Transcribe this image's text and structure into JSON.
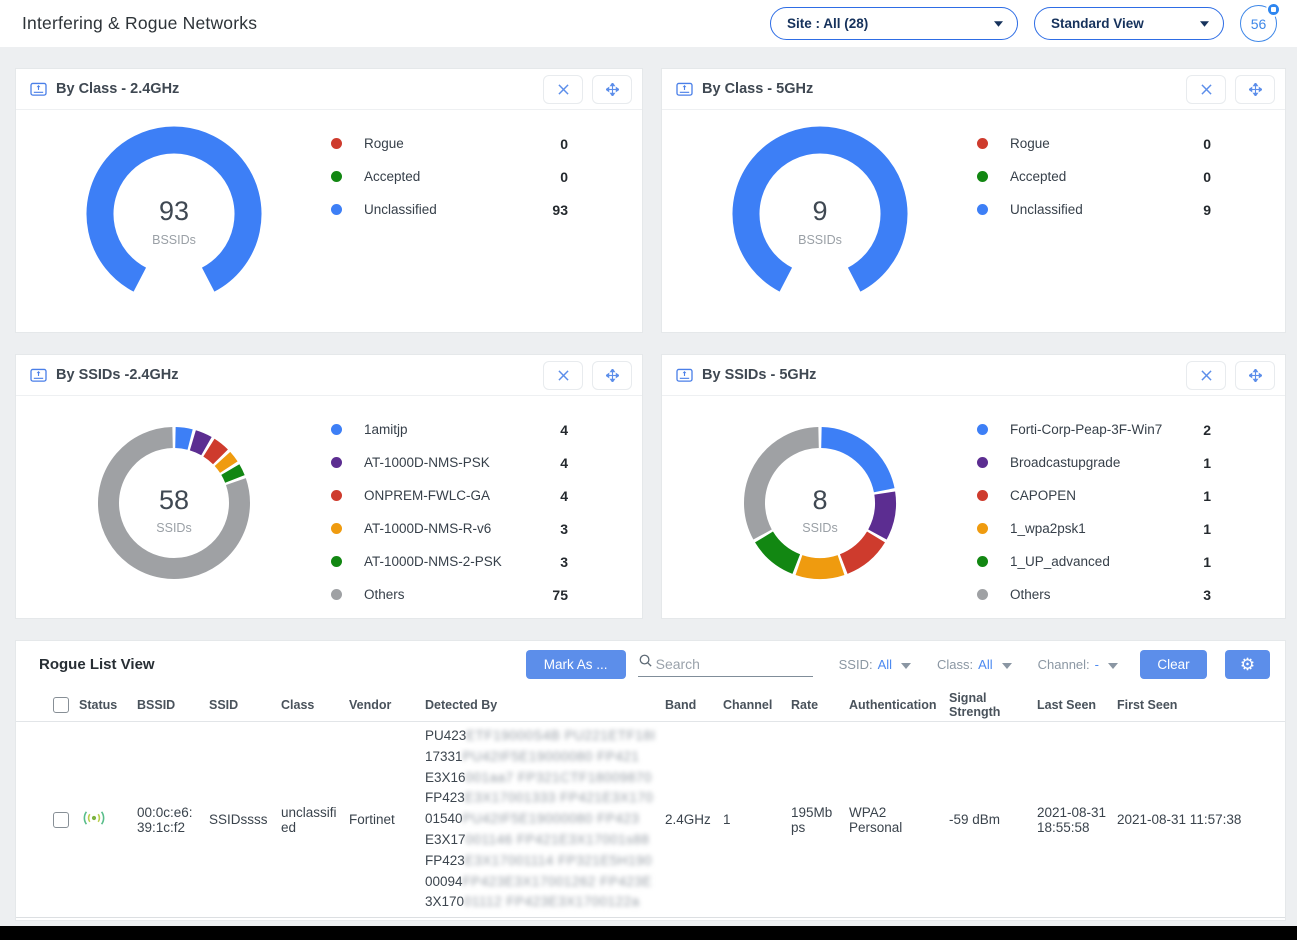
{
  "header": {
    "title": "Interfering & Rogue Networks",
    "site_dropdown": "Site : All (28)",
    "view_dropdown": "Standard View",
    "alarm_count": "56"
  },
  "colors": {
    "blue": "#3D7FF6",
    "purple": "#5C2D91",
    "red": "#CE3B2D",
    "orange": "#EF9B0F",
    "green": "#128712",
    "gray": "#9FA1A4",
    "accent": "#5C8EEA",
    "link": "#4D8AF0"
  },
  "panels": [
    {
      "title": "By Class - 2.4GHz",
      "chart": {
        "style": "gauge",
        "center_value": "93",
        "center_label": "BSSIDs"
      },
      "legend": [
        {
          "label": "Rogue",
          "value": "0",
          "color": "#CE3B2D"
        },
        {
          "label": "Accepted",
          "value": "0",
          "color": "#128712"
        },
        {
          "label": "Unclassified",
          "value": "93",
          "color": "#3D7FF6"
        }
      ]
    },
    {
      "title": "By Class - 5GHz",
      "chart": {
        "style": "gauge",
        "center_value": "9",
        "center_label": "BSSIDs"
      },
      "legend": [
        {
          "label": "Rogue",
          "value": "0",
          "color": "#CE3B2D"
        },
        {
          "label": "Accepted",
          "value": "0",
          "color": "#128712"
        },
        {
          "label": "Unclassified",
          "value": "9",
          "color": "#3D7FF6"
        }
      ]
    },
    {
      "title": "By SSIDs -2.4GHz",
      "chart": {
        "style": "ring",
        "center_value": "58",
        "center_label": "SSIDs"
      },
      "legend": [
        {
          "label": "1amitjp",
          "value": "4",
          "color": "#3D7FF6"
        },
        {
          "label": "AT-1000D-NMS-PSK",
          "value": "4",
          "color": "#5C2D91"
        },
        {
          "label": "ONPREM-FWLC-GA",
          "value": "4",
          "color": "#CE3B2D"
        },
        {
          "label": "AT-1000D-NMS-R-v6",
          "value": "3",
          "color": "#EF9B0F"
        },
        {
          "label": "AT-1000D-NMS-2-PSK",
          "value": "3",
          "color": "#128712"
        },
        {
          "label": "Others",
          "value": "75",
          "color": "#9FA1A4"
        }
      ]
    },
    {
      "title": "By SSIDs - 5GHz",
      "chart": {
        "style": "ring",
        "center_value": "8",
        "center_label": "SSIDs"
      },
      "legend": [
        {
          "label": "Forti-Corp-Peap-3F-Win7",
          "value": "2",
          "color": "#3D7FF6"
        },
        {
          "label": "Broadcastupgrade",
          "value": "1",
          "color": "#5C2D91"
        },
        {
          "label": "CAPOPEN",
          "value": "1",
          "color": "#CE3B2D"
        },
        {
          "label": "1_wpa2psk1",
          "value": "1",
          "color": "#EF9B0F"
        },
        {
          "label": "1_UP_advanced",
          "value": "1",
          "color": "#128712"
        },
        {
          "label": "Others",
          "value": "3",
          "color": "#9FA1A4"
        }
      ]
    }
  ],
  "icons": {
    "settings_gear": "⚙"
  },
  "table": {
    "title": "Rogue List View",
    "mark_as_label": "Mark As ...",
    "search_placeholder": "Search",
    "filters": [
      {
        "label": "SSID:",
        "value": "All"
      },
      {
        "label": "Class:",
        "value": "All"
      },
      {
        "label": "Channel:",
        "value": "-"
      }
    ],
    "clear_label": "Clear",
    "columns": [
      "Status",
      "BSSID",
      "SSID",
      "Class",
      "Vendor",
      "Detected By",
      "Band",
      "Channel",
      "Rate",
      "Authentication",
      "Signal Strength",
      "Last Seen",
      "First Seen"
    ],
    "rows": [
      {
        "status_icon": "signal-broadcast",
        "bssid": "00:0c:e6:39:1c:f2",
        "ssid": "SSIDssss",
        "class": "unclassified",
        "vendor": "Fortinet",
        "detected_by": [
          {
            "clear": "PU423",
            "blur": "ETF19000S4B PU221ETF18I"
          },
          {
            "clear": "17331",
            "blur": "PU42IF5E19000080 FP421"
          },
          {
            "clear": "E3X16",
            "blur": "001aa7 FP321CTF18009870"
          },
          {
            "clear": "FP423",
            "blur": "E3X17001333 FP421E3X170"
          },
          {
            "clear": "01540",
            "blur": "PU42IF5E19000080 FP423"
          },
          {
            "clear": "E3X17",
            "blur": "001146 FP421E3X17001s88"
          },
          {
            "clear": "FP423",
            "blur": "E3X17001114 FP321E5H190"
          },
          {
            "clear": "00094",
            "blur": "FP423E3X17001262 FP423E"
          },
          {
            "clear": "3X170",
            "blur": "01112 FP423E3X1700122a"
          }
        ],
        "band": "2.4GHz",
        "channel": "1",
        "rate": "195Mbps",
        "auth": "WPA2 Personal",
        "signal": "-59 dBm",
        "last_seen": "2021-08-31 18:55:58",
        "first_seen": "2021-08-31 11:57:38"
      }
    ]
  }
}
